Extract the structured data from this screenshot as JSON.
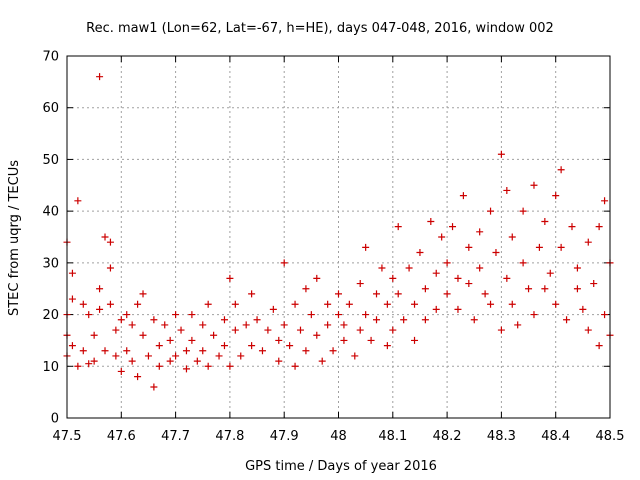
{
  "chart_data": {
    "type": "scatter",
    "title": "Rec. maw1 (Lon=62, Lat=-67, h=HE), days 047-048, 2016, window 002",
    "xlabel": "GPS time / Days of year 2016",
    "ylabel": "STEC from uqrg / TECUs",
    "xlim": [
      47.5,
      48.5
    ],
    "ylim": [
      0,
      70
    ],
    "xticks": [
      "47.5",
      "47.6",
      "47.7",
      "47.8",
      "47.9",
      "48",
      "48.1",
      "48.2",
      "48.3",
      "48.4",
      "48.5"
    ],
    "yticks": [
      "0",
      "10",
      "20",
      "30",
      "40",
      "50",
      "60",
      "70"
    ],
    "grid": true,
    "marker": "plus",
    "color": "#cc0000",
    "series": [
      {
        "points": [
          [
            47.5,
            34.0
          ],
          [
            47.5,
            20.0
          ],
          [
            47.5,
            12.0
          ],
          [
            47.5,
            16.0
          ],
          [
            47.51,
            28.0
          ],
          [
            47.51,
            23.0
          ],
          [
            47.51,
            14.0
          ],
          [
            47.52,
            42.0
          ],
          [
            47.52,
            10.0
          ],
          [
            47.53,
            22.0
          ],
          [
            47.53,
            13.0
          ],
          [
            47.54,
            10.5
          ],
          [
            47.54,
            20.0
          ],
          [
            47.55,
            16.0
          ],
          [
            47.55,
            11.0
          ],
          [
            47.56,
            25.0
          ],
          [
            47.56,
            21.0
          ],
          [
            47.56,
            66.0
          ],
          [
            47.57,
            35.0
          ],
          [
            47.57,
            13.0
          ],
          [
            47.58,
            34.0
          ],
          [
            47.58,
            29.0
          ],
          [
            47.58,
            22.0
          ],
          [
            47.59,
            12.0
          ],
          [
            47.59,
            17.0
          ],
          [
            47.6,
            9.0
          ],
          [
            47.6,
            19.0
          ],
          [
            47.61,
            20.0
          ],
          [
            47.61,
            13.0
          ],
          [
            47.62,
            11.0
          ],
          [
            47.62,
            18.0
          ],
          [
            47.63,
            8.0
          ],
          [
            47.63,
            22.0
          ],
          [
            47.64,
            24.0
          ],
          [
            47.64,
            16.0
          ],
          [
            47.65,
            12.0
          ],
          [
            47.66,
            6.0
          ],
          [
            47.66,
            19.0
          ],
          [
            47.67,
            14.0
          ],
          [
            47.67,
            10.0
          ],
          [
            47.68,
            18.0
          ],
          [
            47.69,
            11.0
          ],
          [
            47.69,
            15.0
          ],
          [
            47.7,
            20.0
          ],
          [
            47.7,
            12.0
          ],
          [
            47.71,
            17.0
          ],
          [
            47.72,
            13.0
          ],
          [
            47.72,
            9.5
          ],
          [
            47.73,
            20.0
          ],
          [
            47.73,
            15.0
          ],
          [
            47.74,
            11.0
          ],
          [
            47.75,
            18.0
          ],
          [
            47.75,
            13.0
          ],
          [
            47.76,
            22.0
          ],
          [
            47.76,
            10.0
          ],
          [
            47.77,
            16.0
          ],
          [
            47.78,
            12.0
          ],
          [
            47.79,
            19.0
          ],
          [
            47.79,
            14.0
          ],
          [
            47.8,
            27.0
          ],
          [
            47.8,
            10.0
          ],
          [
            47.81,
            17.0
          ],
          [
            47.81,
            22.0
          ],
          [
            47.82,
            12.0
          ],
          [
            47.83,
            18.0
          ],
          [
            47.84,
            14.0
          ],
          [
            47.84,
            24.0
          ],
          [
            47.85,
            19.0
          ],
          [
            47.86,
            13.0
          ],
          [
            47.87,
            17.0
          ],
          [
            47.88,
            21.0
          ],
          [
            47.89,
            15.0
          ],
          [
            47.89,
            11.0
          ],
          [
            47.9,
            30.0
          ],
          [
            47.9,
            18.0
          ],
          [
            47.91,
            14.0
          ],
          [
            47.92,
            22.0
          ],
          [
            47.92,
            10.0
          ],
          [
            47.93,
            17.0
          ],
          [
            47.94,
            25.0
          ],
          [
            47.94,
            13.0
          ],
          [
            47.95,
            20.0
          ],
          [
            47.96,
            27.0
          ],
          [
            47.96,
            16.0
          ],
          [
            47.97,
            11.0
          ],
          [
            47.98,
            22.0
          ],
          [
            47.98,
            18.0
          ],
          [
            47.99,
            13.0
          ],
          [
            48.0,
            24.0
          ],
          [
            48.0,
            20.0
          ],
          [
            48.01,
            15.0
          ],
          [
            48.01,
            18.0
          ],
          [
            48.02,
            22.0
          ],
          [
            48.03,
            12.0
          ],
          [
            48.04,
            26.0
          ],
          [
            48.04,
            17.0
          ],
          [
            48.05,
            33.0
          ],
          [
            48.05,
            20.0
          ],
          [
            48.06,
            15.0
          ],
          [
            48.07,
            24.0
          ],
          [
            48.07,
            19.0
          ],
          [
            48.08,
            29.0
          ],
          [
            48.09,
            14.0
          ],
          [
            48.09,
            22.0
          ],
          [
            48.1,
            27.0
          ],
          [
            48.1,
            17.0
          ],
          [
            48.11,
            37.0
          ],
          [
            48.11,
            24.0
          ],
          [
            48.12,
            19.0
          ],
          [
            48.13,
            29.0
          ],
          [
            48.14,
            15.0
          ],
          [
            48.14,
            22.0
          ],
          [
            48.15,
            32.0
          ],
          [
            48.16,
            25.0
          ],
          [
            48.16,
            19.0
          ],
          [
            48.17,
            38.0
          ],
          [
            48.18,
            21.0
          ],
          [
            48.18,
            28.0
          ],
          [
            48.19,
            35.0
          ],
          [
            48.2,
            24.0
          ],
          [
            48.2,
            30.0
          ],
          [
            48.21,
            37.0
          ],
          [
            48.22,
            27.0
          ],
          [
            48.22,
            21.0
          ],
          [
            48.23,
            43.0
          ],
          [
            48.24,
            33.0
          ],
          [
            48.24,
            26.0
          ],
          [
            48.25,
            19.0
          ],
          [
            48.26,
            36.0
          ],
          [
            48.26,
            29.0
          ],
          [
            48.27,
            24.0
          ],
          [
            48.28,
            40.0
          ],
          [
            48.28,
            22.0
          ],
          [
            48.29,
            32.0
          ],
          [
            48.3,
            17.0
          ],
          [
            48.3,
            51.0
          ],
          [
            48.31,
            44.0
          ],
          [
            48.31,
            27.0
          ],
          [
            48.32,
            35.0
          ],
          [
            48.32,
            22.0
          ],
          [
            48.33,
            18.0
          ],
          [
            48.34,
            40.0
          ],
          [
            48.34,
            30.0
          ],
          [
            48.35,
            25.0
          ],
          [
            48.36,
            45.0
          ],
          [
            48.36,
            20.0
          ],
          [
            48.37,
            33.0
          ],
          [
            48.38,
            38.0
          ],
          [
            48.38,
            25.0
          ],
          [
            48.39,
            28.0
          ],
          [
            48.4,
            43.0
          ],
          [
            48.4,
            22.0
          ],
          [
            48.41,
            48.0
          ],
          [
            48.41,
            33.0
          ],
          [
            48.42,
            19.0
          ],
          [
            48.43,
            37.0
          ],
          [
            48.44,
            25.0
          ],
          [
            48.44,
            29.0
          ],
          [
            48.45,
            21.0
          ],
          [
            48.46,
            34.0
          ],
          [
            48.46,
            17.0
          ],
          [
            48.47,
            26.0
          ],
          [
            48.48,
            37.0
          ],
          [
            48.48,
            14.0
          ],
          [
            48.49,
            42.0
          ],
          [
            48.49,
            20.0
          ],
          [
            48.5,
            30.0
          ],
          [
            48.5,
            16.0
          ]
        ]
      }
    ]
  }
}
